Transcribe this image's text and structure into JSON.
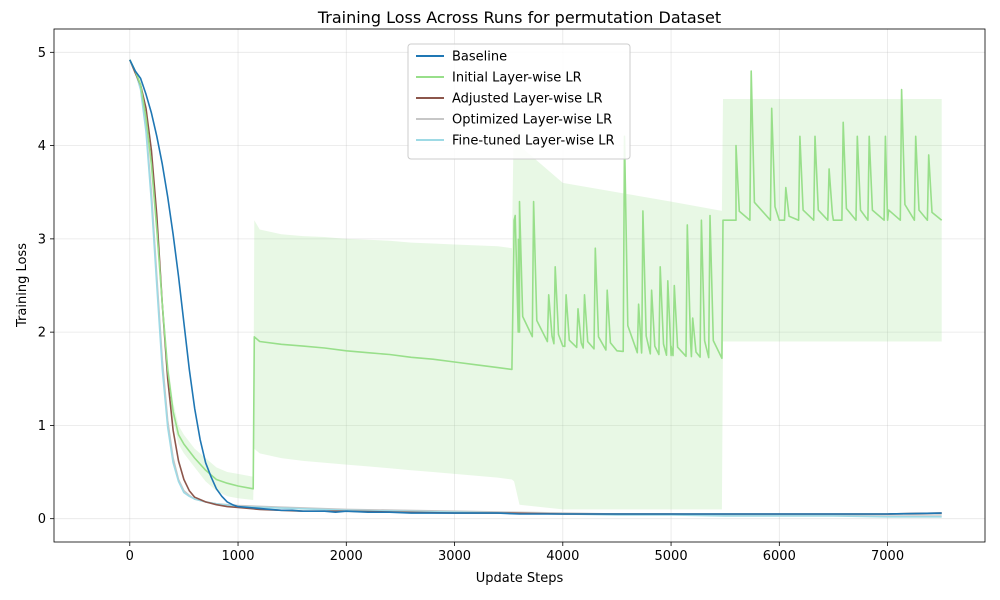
{
  "chart_data": {
    "type": "line",
    "title": "Training Loss Across Runs for permutation Dataset",
    "xlabel": "Update Steps",
    "ylabel": "Training Loss",
    "xlim": [
      -700,
      7900
    ],
    "ylim": [
      -0.25,
      5.25
    ],
    "xticks": [
      0,
      1000,
      2000,
      3000,
      4000,
      5000,
      6000,
      7000
    ],
    "yticks": [
      0,
      1,
      2,
      3,
      4,
      5
    ],
    "grid": true,
    "legend_position": "top-center",
    "series": [
      {
        "name": "Baseline",
        "color": "#1f77b4",
        "x": [
          0,
          50,
          100,
          150,
          200,
          250,
          300,
          350,
          400,
          450,
          500,
          550,
          600,
          650,
          700,
          750,
          800,
          850,
          900,
          950,
          1000,
          1100,
          1200,
          1300,
          1400,
          1500,
          1600,
          1700,
          1800,
          1900,
          2000,
          2200,
          2400,
          2600,
          2800,
          3000,
          3200,
          3400,
          3600,
          3800,
          4000,
          4500,
          5000,
          5500,
          6000,
          6500,
          7000,
          7500
        ],
        "values": [
          4.92,
          4.8,
          4.72,
          4.55,
          4.35,
          4.1,
          3.8,
          3.45,
          3.05,
          2.6,
          2.1,
          1.6,
          1.18,
          0.85,
          0.6,
          0.45,
          0.32,
          0.24,
          0.18,
          0.15,
          0.13,
          0.12,
          0.11,
          0.1,
          0.09,
          0.09,
          0.08,
          0.08,
          0.08,
          0.07,
          0.08,
          0.07,
          0.07,
          0.06,
          0.06,
          0.06,
          0.06,
          0.06,
          0.05,
          0.05,
          0.05,
          0.05,
          0.05,
          0.05,
          0.05,
          0.05,
          0.05,
          0.06
        ]
      },
      {
        "name": "Initial Layer-wise LR",
        "color": "#98df8a",
        "x": [
          0,
          50,
          100,
          150,
          200,
          250,
          300,
          350,
          400,
          450,
          500,
          600,
          700,
          800,
          900,
          1000,
          1140,
          1150,
          1200,
          1400,
          1600,
          1800,
          2000,
          2200,
          2400,
          2600,
          2800,
          3000,
          3200,
          3400,
          3530,
          3550,
          3600,
          4000,
          4500,
          5000,
          5470,
          5480,
          5600,
          6000,
          6500,
          7000,
          7500
        ],
        "values": [
          4.92,
          4.8,
          4.65,
          4.3,
          3.8,
          3.1,
          2.3,
          1.6,
          1.15,
          0.9,
          0.8,
          0.65,
          0.52,
          0.42,
          0.38,
          0.35,
          0.32,
          1.95,
          1.9,
          1.87,
          1.85,
          1.83,
          1.8,
          1.78,
          1.76,
          1.73,
          1.71,
          1.68,
          1.65,
          1.62,
          1.6,
          3.2,
          2.0,
          1.85,
          1.8,
          1.75,
          1.72,
          3.2,
          3.2,
          3.2,
          3.2,
          3.2,
          3.2
        ],
        "band_lower": [
          4.9,
          4.78,
          4.6,
          4.2,
          3.7,
          3.0,
          2.2,
          1.5,
          1.05,
          0.8,
          0.7,
          0.55,
          0.4,
          0.3,
          0.24,
          0.22,
          0.2,
          0.75,
          0.7,
          0.65,
          0.62,
          0.6,
          0.58,
          0.56,
          0.54,
          0.52,
          0.5,
          0.48,
          0.46,
          0.44,
          0.42,
          0.4,
          0.15,
          0.1,
          0.1,
          0.1,
          0.1,
          1.9,
          1.9,
          1.9,
          1.9,
          1.9,
          1.9
        ],
        "band_upper": [
          4.94,
          4.82,
          4.7,
          4.4,
          3.9,
          3.2,
          2.4,
          1.7,
          1.25,
          1.0,
          0.9,
          0.75,
          0.65,
          0.55,
          0.5,
          0.48,
          0.45,
          3.2,
          3.1,
          3.05,
          3.03,
          3.02,
          3.0,
          2.99,
          2.98,
          2.96,
          2.95,
          2.94,
          2.93,
          2.92,
          2.9,
          4.5,
          4.0,
          3.6,
          3.5,
          3.4,
          3.3,
          4.5,
          4.5,
          4.5,
          4.5,
          4.5,
          4.5
        ],
        "spikes": [
          [
            3560,
            3.25
          ],
          [
            3600,
            3.4
          ],
          [
            3730,
            3.4
          ],
          [
            3870,
            2.4
          ],
          [
            3930,
            2.7
          ],
          [
            4030,
            2.4
          ],
          [
            4140,
            2.25
          ],
          [
            4200,
            2.4
          ],
          [
            4300,
            2.9
          ],
          [
            4410,
            2.45
          ],
          [
            4570,
            4.1
          ],
          [
            4700,
            2.3
          ],
          [
            4740,
            3.3
          ],
          [
            4820,
            2.45
          ],
          [
            4900,
            2.7
          ],
          [
            4970,
            2.55
          ],
          [
            5030,
            2.5
          ],
          [
            5150,
            3.15
          ],
          [
            5200,
            2.15
          ],
          [
            5280,
            3.2
          ],
          [
            5360,
            3.25
          ],
          [
            5600,
            4.0
          ],
          [
            5740,
            4.8
          ],
          [
            5930,
            4.4
          ],
          [
            6060,
            3.55
          ],
          [
            6190,
            4.1
          ],
          [
            6330,
            4.1
          ],
          [
            6460,
            3.75
          ],
          [
            6590,
            4.25
          ],
          [
            6720,
            4.1
          ],
          [
            6830,
            4.1
          ],
          [
            6980,
            4.1
          ],
          [
            7130,
            4.6
          ],
          [
            7260,
            4.1
          ],
          [
            7380,
            3.9
          ]
        ]
      },
      {
        "name": "Adjusted Layer-wise LR",
        "color": "#8c564b",
        "x": [
          0,
          50,
          100,
          150,
          200,
          250,
          300,
          350,
          400,
          450,
          500,
          550,
          600,
          700,
          800,
          900,
          1000,
          1200,
          1400,
          1600,
          2000,
          2500,
          3000,
          3500,
          4000,
          4500,
          5000,
          5500,
          6000,
          6500,
          7000,
          7500
        ],
        "values": [
          4.92,
          4.78,
          4.65,
          4.4,
          3.95,
          3.25,
          2.3,
          1.5,
          0.95,
          0.62,
          0.42,
          0.3,
          0.23,
          0.18,
          0.15,
          0.13,
          0.12,
          0.1,
          0.09,
          0.08,
          0.08,
          0.07,
          0.06,
          0.06,
          0.05,
          0.05,
          0.05,
          0.05,
          0.05,
          0.05,
          0.05,
          0.06
        ]
      },
      {
        "name": "Optimized Layer-wise LR",
        "color": "#c7c7c7",
        "x": [
          0,
          50,
          100,
          150,
          200,
          250,
          300,
          350,
          400,
          450,
          500,
          550,
          600,
          700,
          800,
          1000,
          1500,
          2000,
          2500,
          3000,
          3500,
          4000,
          4500,
          5000,
          5500,
          6000,
          6500,
          7000,
          7500
        ],
        "values": [
          4.92,
          4.8,
          4.62,
          4.2,
          3.5,
          2.6,
          1.7,
          1.05,
          0.65,
          0.42,
          0.3,
          0.25,
          0.21,
          0.18,
          0.16,
          0.14,
          0.12,
          0.1,
          0.09,
          0.08,
          0.07,
          0.06,
          0.05,
          0.05,
          0.04,
          0.04,
          0.04,
          0.04,
          0.04
        ]
      },
      {
        "name": "Fine-tuned Layer-wise LR",
        "color": "#9edae5",
        "x": [
          0,
          50,
          100,
          150,
          200,
          250,
          300,
          350,
          400,
          450,
          500,
          550,
          600,
          700,
          800,
          1000,
          1500,
          2000,
          2500,
          3000,
          3500,
          4000,
          4500,
          5000,
          5500,
          6000,
          6500,
          7000,
          7500
        ],
        "values": [
          4.92,
          4.8,
          4.6,
          4.15,
          3.4,
          2.5,
          1.6,
          0.98,
          0.6,
          0.4,
          0.28,
          0.24,
          0.21,
          0.18,
          0.16,
          0.13,
          0.11,
          0.09,
          0.08,
          0.07,
          0.06,
          0.05,
          0.04,
          0.04,
          0.03,
          0.03,
          0.03,
          0.02,
          0.02
        ]
      }
    ]
  }
}
